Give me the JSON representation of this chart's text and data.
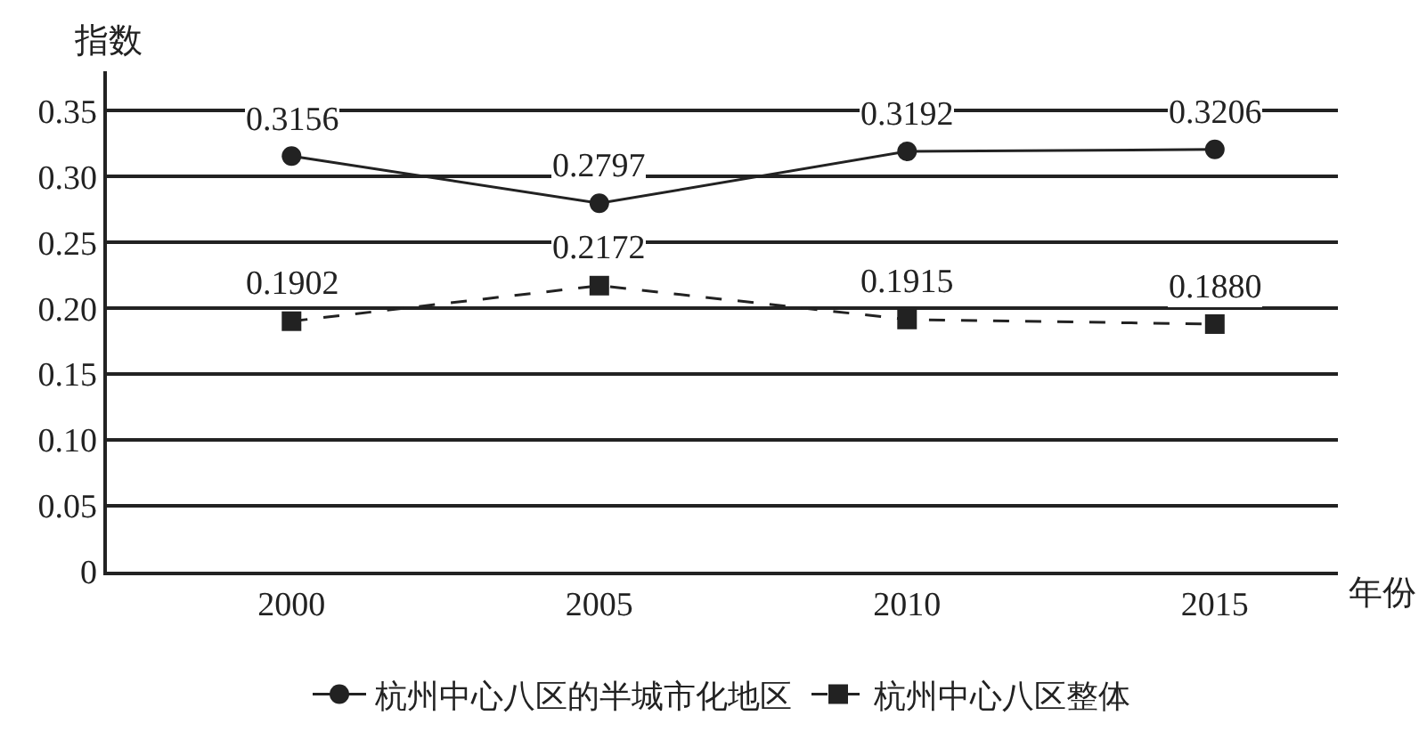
{
  "chart_data": {
    "type": "line",
    "ylabel": "指数",
    "xlabel": "年份",
    "categories": [
      "2000",
      "2005",
      "2010",
      "2015"
    ],
    "series": [
      {
        "name": "杭州中心八区的半城市化地区",
        "color": "#222222",
        "marker": "circle",
        "line_style": "solid",
        "values": [
          0.3156,
          0.2797,
          0.3192,
          0.3206
        ],
        "value_labels": [
          "0.3156",
          "0.2797",
          "0.3192",
          "0.3206"
        ]
      },
      {
        "name": "杭州中心八区整体",
        "color": "#222222",
        "marker": "square",
        "line_style": "dashed",
        "values": [
          0.1902,
          0.2172,
          0.1915,
          0.188
        ],
        "value_labels": [
          "0.1902",
          "0.2172",
          "0.1915",
          "0.1880"
        ]
      }
    ],
    "ylim": [
      0,
      0.38
    ],
    "yticks": [
      0,
      0.05,
      {
        "value": 0.1,
        "label": "0.10"
      },
      0.15,
      {
        "value": 0.2,
        "label": "0.20"
      },
      0.25,
      {
        "value": 0.3,
        "label": "0.30"
      },
      0.35
    ],
    "grid": "y",
    "legend": "bottom"
  }
}
